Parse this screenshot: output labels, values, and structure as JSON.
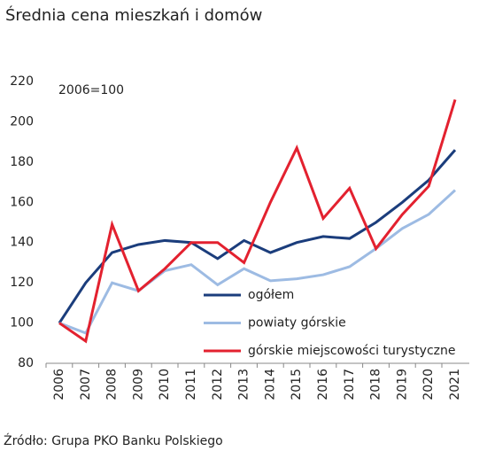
{
  "chart_data": {
    "type": "line",
    "title": "Średnia cena mieszkań i domów",
    "annotation": "2006=100",
    "source": "Źródło: Grupa PKO Banku Polskiego",
    "categories": [
      "2006",
      "2007",
      "2008",
      "2009",
      "2010",
      "2011",
      "2012",
      "2013",
      "2014",
      "2015",
      "2016",
      "2017",
      "2018",
      "2019",
      "2020",
      "2021"
    ],
    "series": [
      {
        "name": "ogółem",
        "color": "#1b3d7c",
        "values": [
          100,
          120,
          135,
          139,
          141,
          140,
          132,
          141,
          135,
          140,
          143,
          142,
          150,
          160,
          171,
          186
        ]
      },
      {
        "name": "powiaty górskie",
        "color": "#9dbbe3",
        "values": [
          100,
          95,
          120,
          116,
          126,
          129,
          119,
          127,
          121,
          122,
          124,
          128,
          137,
          147,
          154,
          166
        ]
      },
      {
        "name": "górskie miejscowości turystyczne",
        "color": "#e3212f",
        "values": [
          100,
          91,
          149,
          116,
          127,
          140,
          140,
          130,
          160,
          187,
          152,
          167,
          137,
          154,
          168,
          211
        ]
      }
    ],
    "ylim": [
      80,
      220
    ],
    "yticks": [
      80,
      100,
      120,
      140,
      160,
      180,
      200,
      220
    ]
  }
}
